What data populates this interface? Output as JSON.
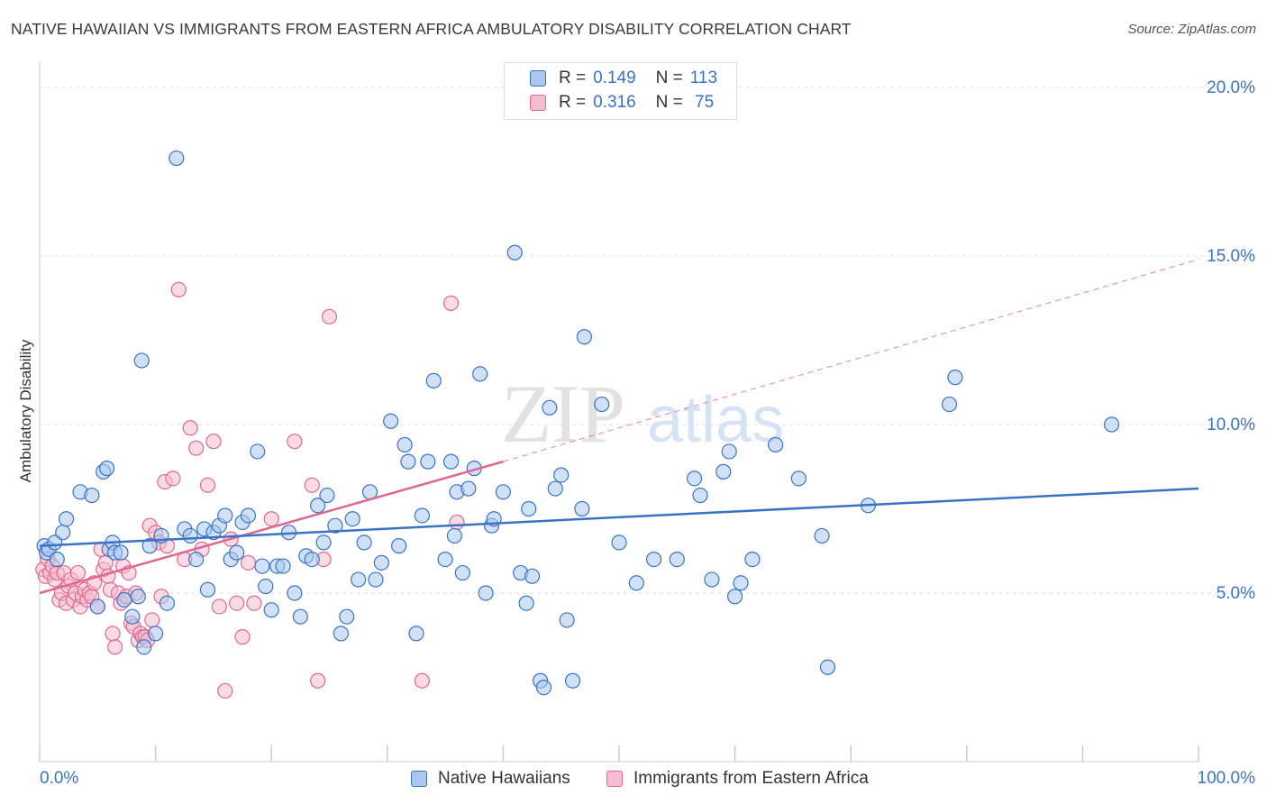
{
  "title": "NATIVE HAWAIIAN VS IMMIGRANTS FROM EASTERN AFRICA AMBULATORY DISABILITY CORRELATION CHART",
  "source": "Source: ZipAtlas.com",
  "colors": {
    "blue": "#3a73c4",
    "blue_fill": "#aac8ee",
    "pink": "#e06890",
    "pink_fill": "#f6bdd0",
    "grid": "#dddddd",
    "axis_text": "#3a73c4"
  },
  "legend": {
    "r_label": "R =",
    "n_label": "N =",
    "rows": [
      {
        "r": "0.149",
        "n": "113"
      },
      {
        "r": "0.316",
        "n": " 75"
      }
    ]
  },
  "bottom_legend": {
    "series1": "Native Hawaiians",
    "series2": "Immigrants from Eastern Africa"
  },
  "chart_data": {
    "type": "scatter",
    "title": "NATIVE HAWAIIAN VS IMMIGRANTS FROM EASTERN AFRICA AMBULATORY DISABILITY CORRELATION CHART",
    "ylabel": "Ambulatory Disability",
    "xlabel": "",
    "x_tick_labels": [
      "0.0%",
      "100.0%"
    ],
    "y_tick_labels": [
      "5.0%",
      "10.0%",
      "15.0%",
      "20.0%"
    ],
    "xlim": [
      0,
      100
    ],
    "ylim": [
      0,
      20
    ],
    "series": [
      {
        "name": "Native Hawaiians",
        "r": 0.149,
        "n": 113,
        "trend": {
          "x": [
            0,
            100
          ],
          "y": [
            6.4,
            8.1
          ]
        },
        "points": [
          [
            0.4,
            6.4
          ],
          [
            0.6,
            6.2
          ],
          [
            0.8,
            6.3
          ],
          [
            1.3,
            6.5
          ],
          [
            1.5,
            6.0
          ],
          [
            2.0,
            6.8
          ],
          [
            2.3,
            7.2
          ],
          [
            3.5,
            8.0
          ],
          [
            4.5,
            7.9
          ],
          [
            5.0,
            4.6
          ],
          [
            5.5,
            8.6
          ],
          [
            5.8,
            8.7
          ],
          [
            6.0,
            6.3
          ],
          [
            6.3,
            6.5
          ],
          [
            6.5,
            6.2
          ],
          [
            7.0,
            6.2
          ],
          [
            7.3,
            4.8
          ],
          [
            8.0,
            4.3
          ],
          [
            8.5,
            4.9
          ],
          [
            8.8,
            11.9
          ],
          [
            9.0,
            3.4
          ],
          [
            9.5,
            6.4
          ],
          [
            10.0,
            3.8
          ],
          [
            10.5,
            6.7
          ],
          [
            11.0,
            4.7
          ],
          [
            11.8,
            17.9
          ],
          [
            12.5,
            6.9
          ],
          [
            13.0,
            6.7
          ],
          [
            13.5,
            6.0
          ],
          [
            14.2,
            6.9
          ],
          [
            14.5,
            5.1
          ],
          [
            15.0,
            6.8
          ],
          [
            15.5,
            7.0
          ],
          [
            16.0,
            7.3
          ],
          [
            16.5,
            6.0
          ],
          [
            17.0,
            6.2
          ],
          [
            17.5,
            7.1
          ],
          [
            18.0,
            7.3
          ],
          [
            18.8,
            9.2
          ],
          [
            19.2,
            5.8
          ],
          [
            19.5,
            5.2
          ],
          [
            20.0,
            4.5
          ],
          [
            20.5,
            5.8
          ],
          [
            21.0,
            5.8
          ],
          [
            21.5,
            6.8
          ],
          [
            22.0,
            5.0
          ],
          [
            22.5,
            4.3
          ],
          [
            23.0,
            6.1
          ],
          [
            23.5,
            6.0
          ],
          [
            24.0,
            7.6
          ],
          [
            24.5,
            6.5
          ],
          [
            24.8,
            7.9
          ],
          [
            25.5,
            7.0
          ],
          [
            26.0,
            3.8
          ],
          [
            26.5,
            4.3
          ],
          [
            27.0,
            7.2
          ],
          [
            27.5,
            5.4
          ],
          [
            28.0,
            6.5
          ],
          [
            28.5,
            8.0
          ],
          [
            29.0,
            5.4
          ],
          [
            29.5,
            5.9
          ],
          [
            30.3,
            10.1
          ],
          [
            31.0,
            6.4
          ],
          [
            31.5,
            9.4
          ],
          [
            31.8,
            8.9
          ],
          [
            32.5,
            3.8
          ],
          [
            33.0,
            7.3
          ],
          [
            33.5,
            8.9
          ],
          [
            34.0,
            11.3
          ],
          [
            35.0,
            6.0
          ],
          [
            35.5,
            8.9
          ],
          [
            35.8,
            6.7
          ],
          [
            36.0,
            8.0
          ],
          [
            36.5,
            5.6
          ],
          [
            37.0,
            8.1
          ],
          [
            37.5,
            8.7
          ],
          [
            38.0,
            11.5
          ],
          [
            38.5,
            5.0
          ],
          [
            39.0,
            7.0
          ],
          [
            39.2,
            7.2
          ],
          [
            40.0,
            8.0
          ],
          [
            41.0,
            15.1
          ],
          [
            41.5,
            5.6
          ],
          [
            42.0,
            4.7
          ],
          [
            42.2,
            7.5
          ],
          [
            42.5,
            5.5
          ],
          [
            43.2,
            2.4
          ],
          [
            43.5,
            2.2
          ],
          [
            44.0,
            10.5
          ],
          [
            44.5,
            8.1
          ],
          [
            45.0,
            8.5
          ],
          [
            45.5,
            4.2
          ],
          [
            46.0,
            2.4
          ],
          [
            46.8,
            7.5
          ],
          [
            47.0,
            12.6
          ],
          [
            48.5,
            10.6
          ],
          [
            50.0,
            6.5
          ],
          [
            51.5,
            5.3
          ],
          [
            53.0,
            6.0
          ],
          [
            55.0,
            6.0
          ],
          [
            56.5,
            8.4
          ],
          [
            57.0,
            7.9
          ],
          [
            58.0,
            5.4
          ],
          [
            59.0,
            8.6
          ],
          [
            59.5,
            9.2
          ],
          [
            60.0,
            4.9
          ],
          [
            60.5,
            5.3
          ],
          [
            61.5,
            6.0
          ],
          [
            63.5,
            9.4
          ],
          [
            65.5,
            8.4
          ],
          [
            67.5,
            6.7
          ],
          [
            68.0,
            2.8
          ],
          [
            71.5,
            7.6
          ],
          [
            78.5,
            10.6
          ],
          [
            79.0,
            11.4
          ],
          [
            92.5,
            10.0
          ]
        ]
      },
      {
        "name": "Immigrants from Eastern Africa",
        "r": 0.316,
        "n": 75,
        "trend": {
          "x": [
            0,
            40
          ],
          "y": [
            5.0,
            8.9
          ]
        },
        "trend_ext": {
          "x": [
            40,
            100
          ],
          "y": [
            8.9,
            14.9
          ]
        },
        "points": [
          [
            0.3,
            5.7
          ],
          [
            0.5,
            5.5
          ],
          [
            0.7,
            6.0
          ],
          [
            0.9,
            5.6
          ],
          [
            1.1,
            5.8
          ],
          [
            1.3,
            5.4
          ],
          [
            1.5,
            5.6
          ],
          [
            1.7,
            4.8
          ],
          [
            1.9,
            5.0
          ],
          [
            2.1,
            5.6
          ],
          [
            2.3,
            4.7
          ],
          [
            2.5,
            5.2
          ],
          [
            2.7,
            5.4
          ],
          [
            2.9,
            4.8
          ],
          [
            3.1,
            5.0
          ],
          [
            3.3,
            5.6
          ],
          [
            3.5,
            4.6
          ],
          [
            3.7,
            4.9
          ],
          [
            3.9,
            5.1
          ],
          [
            4.1,
            4.8
          ],
          [
            4.3,
            5.0
          ],
          [
            4.5,
            4.9
          ],
          [
            4.7,
            5.3
          ],
          [
            5.0,
            4.6
          ],
          [
            5.3,
            6.3
          ],
          [
            5.5,
            5.7
          ],
          [
            5.7,
            5.9
          ],
          [
            5.9,
            5.5
          ],
          [
            6.1,
            5.1
          ],
          [
            6.3,
            3.8
          ],
          [
            6.5,
            3.4
          ],
          [
            6.8,
            5.0
          ],
          [
            7.0,
            4.7
          ],
          [
            7.2,
            5.8
          ],
          [
            7.5,
            4.9
          ],
          [
            7.7,
            5.6
          ],
          [
            7.9,
            4.1
          ],
          [
            8.1,
            4.0
          ],
          [
            8.3,
            5.0
          ],
          [
            8.5,
            3.6
          ],
          [
            8.7,
            3.8
          ],
          [
            8.9,
            3.7
          ],
          [
            9.1,
            3.7
          ],
          [
            9.3,
            3.6
          ],
          [
            9.5,
            7.0
          ],
          [
            9.7,
            4.2
          ],
          [
            10.0,
            6.8
          ],
          [
            10.3,
            6.5
          ],
          [
            10.5,
            4.9
          ],
          [
            10.8,
            8.3
          ],
          [
            11.0,
            6.4
          ],
          [
            11.5,
            8.4
          ],
          [
            12.0,
            14.0
          ],
          [
            12.5,
            6.0
          ],
          [
            13.0,
            9.9
          ],
          [
            13.5,
            9.3
          ],
          [
            14.0,
            6.3
          ],
          [
            14.5,
            8.2
          ],
          [
            15.0,
            9.5
          ],
          [
            15.5,
            4.6
          ],
          [
            16.0,
            2.1
          ],
          [
            16.5,
            6.6
          ],
          [
            17.0,
            4.7
          ],
          [
            17.5,
            3.7
          ],
          [
            18.0,
            5.9
          ],
          [
            18.5,
            4.7
          ],
          [
            20.0,
            7.2
          ],
          [
            22.0,
            9.5
          ],
          [
            23.5,
            8.2
          ],
          [
            24.0,
            2.4
          ],
          [
            24.5,
            6.0
          ],
          [
            25.0,
            13.2
          ],
          [
            33.0,
            2.4
          ],
          [
            35.5,
            13.6
          ],
          [
            36.0,
            7.1
          ]
        ]
      }
    ]
  }
}
